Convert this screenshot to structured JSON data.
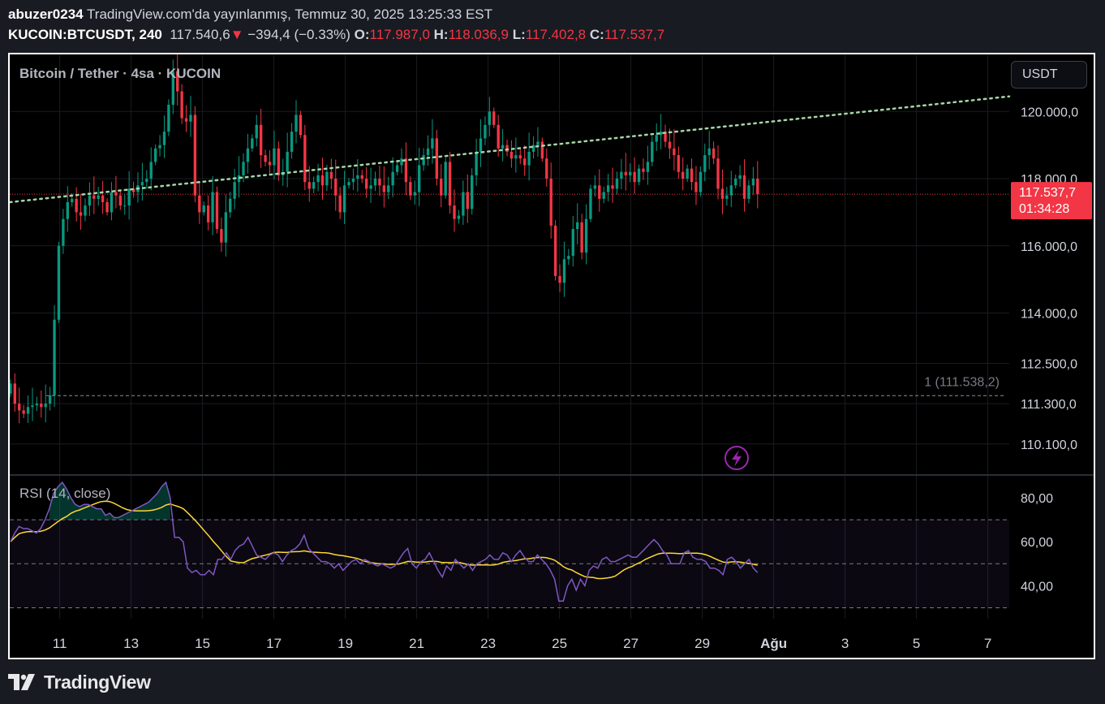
{
  "header": {
    "user": "abuzer0234",
    "published": "TradingView.com'da yayınlanmış, Temmuz 30, 2025 13:25:33 EST",
    "symbol": "KUCOIN:BTCUSDT, 240",
    "last": "117.540,6",
    "change": "−394,4 (−0.33%)",
    "o_label": "O:",
    "o": "117.987,0",
    "h_label": "H:",
    "h": "118.036,9",
    "l_label": "L:",
    "l": "117.402,8",
    "c_label": "C:",
    "c": "117.537,7"
  },
  "legend_main": "Bitcoin / Tether · 4sa · KUCOIN",
  "legend_rsi": "RSI (14, close)",
  "currency_button": "USDT",
  "price_tag": {
    "price": "117.537,7",
    "countdown": "01:34:28"
  },
  "level_label": "1 (111.538,2)",
  "footer_brand": "TradingView",
  "colors": {
    "up": "#089981",
    "down": "#f23645",
    "trend": "#a5d6a7",
    "rsi": "#7e57c2",
    "rsi_ma": "#fdd835"
  },
  "chart_data": [
    {
      "type": "candlestick",
      "title": "Bitcoin / Tether · 4sa · KUCOIN",
      "y_axis_ticks": [
        {
          "value": 120000,
          "label": "120.000,0"
        },
        {
          "value": 118000,
          "label": "118.000,0"
        },
        {
          "value": 116000,
          "label": "116.000,0"
        },
        {
          "value": 114000,
          "label": "114.000,0"
        },
        {
          "value": 112500,
          "label": "112.500,0"
        },
        {
          "value": 111300,
          "label": "111.300,0"
        },
        {
          "value": 110100,
          "label": "110.100,0"
        }
      ],
      "x_axis_ticks": [
        {
          "day": 11,
          "label": "11"
        },
        {
          "day": 13,
          "label": "13"
        },
        {
          "day": 15,
          "label": "15"
        },
        {
          "day": 17,
          "label": "17"
        },
        {
          "day": 19,
          "label": "19"
        },
        {
          "day": 21,
          "label": "21"
        },
        {
          "day": 23,
          "label": "23"
        },
        {
          "day": 25,
          "label": "25"
        },
        {
          "day": 27,
          "label": "27"
        },
        {
          "day": 29,
          "label": "29"
        },
        {
          "day": 31,
          "label": "Ağu"
        },
        {
          "day": 33,
          "label": "3"
        },
        {
          "day": 35,
          "label": "5"
        },
        {
          "day": 37,
          "label": "7"
        }
      ],
      "x_range_days": [
        9.6,
        37.6
      ],
      "y_range": [
        109200,
        121700
      ],
      "current_price": 117537.7,
      "horizontal_level": 111538.2,
      "trendline": [
        {
          "day": 9.6,
          "price": 117300
        },
        {
          "day": 37.6,
          "price": 120450
        }
      ],
      "closes": [
        111900,
        111300,
        111100,
        111000,
        111200,
        111250,
        111300,
        111200,
        111300,
        111550,
        113800,
        116000,
        116800,
        117300,
        117400,
        117000,
        116900,
        117200,
        117500,
        117400,
        117500,
        117300,
        117000,
        117600,
        117500,
        117200,
        117200,
        117700,
        117600,
        117800,
        117900,
        118000,
        118500,
        118900,
        119000,
        119400,
        120200,
        121200,
        120600,
        119800,
        119700,
        119900,
        117500,
        117000,
        117200,
        116700,
        117600,
        116500,
        116100,
        117000,
        117400,
        117900,
        118100,
        118500,
        118900,
        119200,
        119600,
        118700,
        118500,
        118400,
        118900,
        118100,
        118200,
        118800,
        119400,
        119900,
        119300,
        117900,
        117700,
        117900,
        118100,
        117800,
        118200,
        118000,
        117500,
        117000,
        117800,
        117900,
        118000,
        118100,
        118000,
        117700,
        117800,
        118000,
        117800,
        117600,
        117800,
        118200,
        118400,
        118600,
        117900,
        117500,
        117600,
        118400,
        118700,
        118900,
        119200,
        118000,
        117500,
        118500,
        117200,
        116800,
        116900,
        117600,
        117100,
        118100,
        118800,
        119200,
        119600,
        120000,
        119600,
        118900,
        119000,
        118800,
        118600,
        118700,
        118600,
        118400,
        118800,
        119000,
        119100,
        118600,
        118000,
        116600,
        115100,
        114900,
        115600,
        115700,
        116500,
        116700,
        115800,
        116800,
        117700,
        117800,
        117400,
        117600,
        117800,
        117700,
        118000,
        118200,
        118100,
        118200,
        117900,
        118300,
        118200,
        118500,
        119100,
        119300,
        119400,
        119100,
        118900,
        118700,
        118200,
        118000,
        118300,
        117900,
        117600,
        118200,
        118700,
        118900,
        118600,
        117700,
        117400,
        117500,
        117800,
        118000,
        118100,
        117400,
        117800,
        118000,
        117538
      ],
      "rsi": {
        "title": "RSI (14, close)",
        "y_axis_ticks": [
          {
            "value": 80,
            "label": "80,00"
          },
          {
            "value": 60,
            "label": "60,00"
          },
          {
            "value": 40,
            "label": "40,00"
          }
        ],
        "band": [
          30,
          70
        ],
        "mid": 50,
        "y_range": [
          25,
          90
        ],
        "rsi_values": [
          60,
          64,
          67,
          66,
          66,
          65,
          64,
          66,
          70,
          75,
          82,
          85,
          87,
          84,
          80,
          77,
          76,
          77,
          77,
          76,
          75,
          75,
          72,
          73,
          71,
          71,
          72,
          73,
          74,
          75,
          76,
          77,
          78,
          80,
          82,
          85,
          87,
          80,
          62,
          62,
          60,
          48,
          46,
          47,
          45,
          45,
          47,
          45,
          52,
          52,
          55,
          52,
          56,
          58,
          59,
          62,
          58,
          54,
          53,
          52,
          54,
          55,
          54,
          51,
          54,
          56,
          57,
          59,
          63,
          57,
          55,
          53,
          51,
          51,
          50,
          48,
          50,
          47,
          49,
          51,
          52,
          50,
          52,
          51,
          50,
          49,
          50,
          49,
          48,
          49,
          52,
          55,
          57,
          50,
          48,
          51,
          52,
          55,
          51,
          47,
          44,
          49,
          47,
          52,
          50,
          48,
          50,
          47,
          50,
          51,
          52,
          54,
          52,
          52,
          55,
          54,
          51,
          54,
          56,
          53,
          51,
          51,
          54,
          52,
          50,
          47,
          43,
          33,
          33,
          40,
          43,
          38,
          43,
          40,
          47,
          49,
          48,
          52,
          53,
          51,
          51,
          52,
          53,
          54,
          53,
          53,
          55,
          57,
          59,
          61,
          59,
          56,
          54,
          50,
          50,
          50,
          55,
          56,
          53,
          52,
          52,
          51,
          48,
          48,
          47,
          45,
          52,
          53,
          51,
          48,
          50,
          52,
          48,
          46
        ]
      }
    }
  ]
}
